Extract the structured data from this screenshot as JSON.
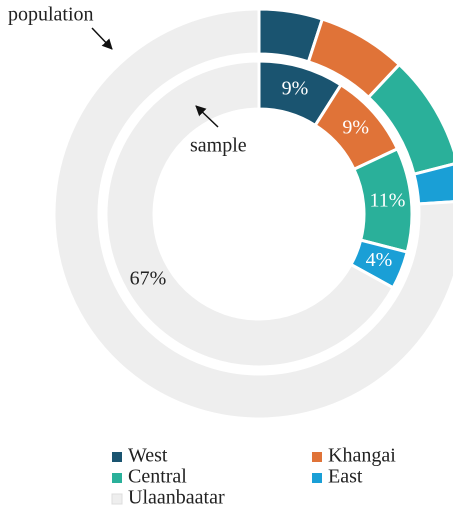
{
  "chart_data": {
    "type": "pie",
    "categories": [
      "West",
      "Khangai",
      "Central",
      "East",
      "Ulaanbaatar"
    ],
    "colors": [
      "#1a5470",
      "#e07338",
      "#2ab09a",
      "#1a9fd6",
      "#eeeeee"
    ],
    "series": [
      {
        "name": "population",
        "values": [
          5,
          7,
          9,
          3,
          76
        ]
      },
      {
        "name": "sample",
        "values": [
          9,
          9,
          11,
          4,
          67
        ],
        "value_labels": [
          "9%",
          "9%",
          "11%",
          "4%",
          "67%"
        ]
      }
    ]
  }
}
